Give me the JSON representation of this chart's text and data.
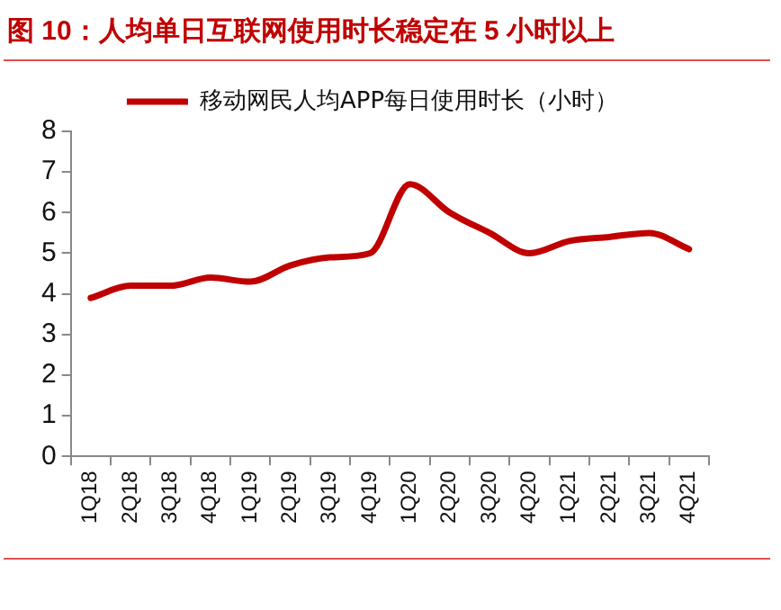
{
  "chart_data": {
    "type": "line",
    "title": "图 10：人均单日互联网使用时长稳定在 5 小时以上",
    "categories": [
      "1Q18",
      "2Q18",
      "3Q18",
      "4Q18",
      "1Q19",
      "2Q19",
      "3Q19",
      "4Q19",
      "1Q20",
      "2Q20",
      "3Q20",
      "4Q20",
      "1Q21",
      "2Q21",
      "3Q21",
      "4Q21"
    ],
    "series": [
      {
        "name": "移动网民人均APP每日使用时长（小时）",
        "color": "#c00000",
        "values": [
          3.9,
          4.2,
          4.2,
          4.4,
          4.3,
          4.7,
          4.9,
          5.0,
          6.7,
          6.0,
          5.5,
          5.0,
          5.3,
          5.4,
          5.5,
          5.1
        ]
      }
    ],
    "ylim": [
      0,
      8
    ],
    "yticks": [
      0,
      1,
      2,
      3,
      4,
      5,
      6,
      7,
      8
    ],
    "grid": false,
    "legend": "top",
    "marker": "none",
    "line_style": "solid"
  }
}
